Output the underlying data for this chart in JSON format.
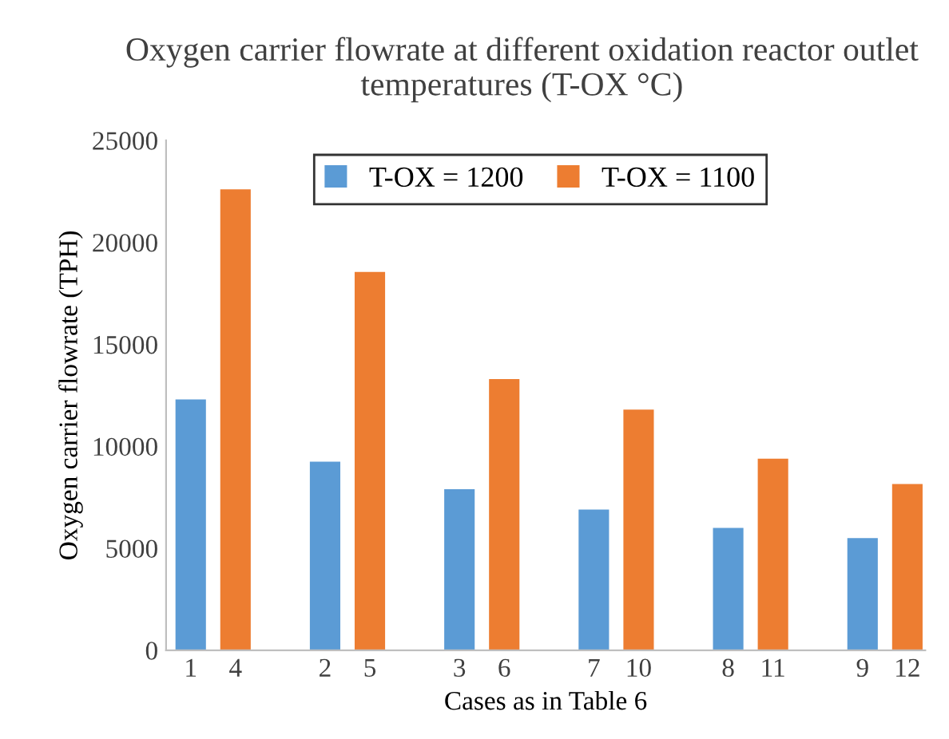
{
  "chart_data": {
    "type": "bar",
    "title": "Oxygen carrier flowrate at different oxidation reactor outlet temperatures (T-OX °C)",
    "xlabel": "Cases as in Table 6",
    "ylabel": "Oxygen carrier flowrate (TPH)",
    "categories": [
      "1",
      "4",
      "2",
      "5",
      "3",
      "6",
      "7",
      "10",
      "8",
      "11",
      "9",
      "12"
    ],
    "series": [
      {
        "name": "T-OX = 1200",
        "color": "#5b9bd5",
        "values": [
          12300,
          null,
          9250,
          null,
          7900,
          null,
          6900,
          null,
          6000,
          null,
          5500,
          null
        ]
      },
      {
        "name": "T-OX = 1100",
        "color": "#ed7d31",
        "values": [
          null,
          22600,
          null,
          18550,
          null,
          13300,
          null,
          11800,
          null,
          9400,
          null,
          8150
        ]
      }
    ],
    "ylim": [
      0,
      25000
    ],
    "yticks": [
      0,
      5000,
      10000,
      15000,
      20000,
      25000
    ],
    "grid": false,
    "legend": "top right"
  }
}
